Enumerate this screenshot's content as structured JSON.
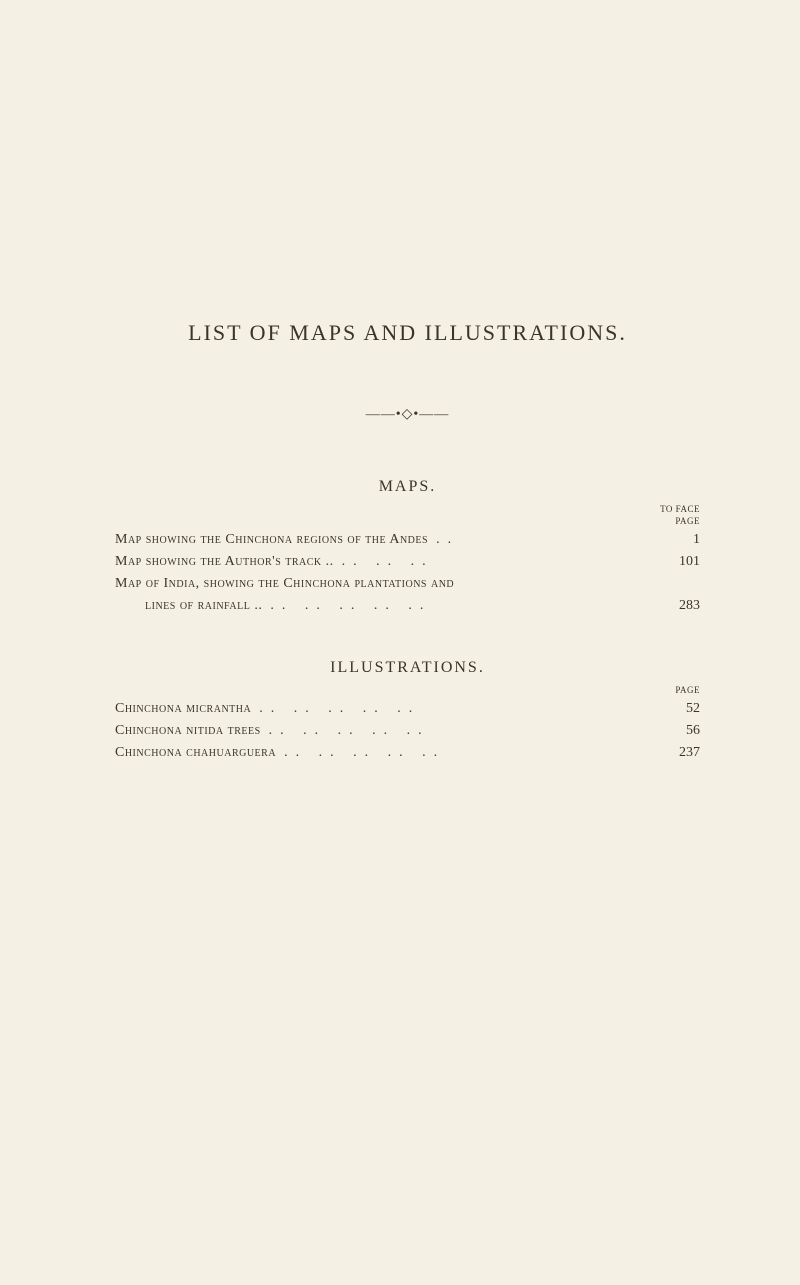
{
  "title": "LIST OF MAPS AND ILLUSTRATIONS.",
  "ornament": "——•◇•——",
  "maps": {
    "heading": "MAPS.",
    "face_label": "TO FACE",
    "page_label": "PAGE",
    "entries": [
      {
        "text": "Map showing the Chinchona regions of the Andes",
        "dots": "..",
        "page": "1"
      },
      {
        "text": "Map showing the Author's track ..",
        "dots": "..     ..     ..",
        "page": "101"
      },
      {
        "text": "Map of India, showing the Chinchona plantations and",
        "dots": "",
        "page": ""
      },
      {
        "text": "lines of rainfall ..",
        "dots": "..     ..     ..     ..     ..",
        "page": "283",
        "continuation": true
      }
    ]
  },
  "illustrations": {
    "heading": "ILLUSTRATIONS.",
    "page_label": "PAGE",
    "entries": [
      {
        "text": "Chinchona micrantha",
        "dots": "..     ..     ..     ..     ..",
        "page": "52"
      },
      {
        "text": "Chinchona nitida trees",
        "dots": "..     ..     ..     ..     ..",
        "page": "56"
      },
      {
        "text": "Chinchona chahuarguera",
        "dots": "..     ..     ..     ..     ..",
        "page": "237"
      }
    ]
  }
}
